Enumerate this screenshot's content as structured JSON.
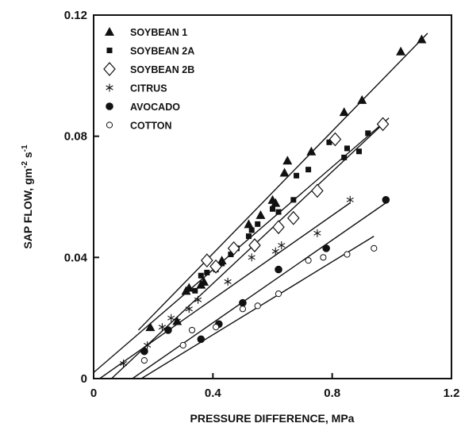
{
  "chart_data": {
    "type": "scatter",
    "xlabel": "PRESSURE DIFFERENCE, MPa",
    "ylabel": "SAP FLOW, gm",
    "ylabel_sup1": "-2",
    "ylabel_mid": " s",
    "ylabel_sup2": "-1",
    "xlim": [
      0,
      1.2
    ],
    "ylim": [
      0,
      0.12
    ],
    "x_ticks": [
      {
        "value": 0,
        "label": "0"
      },
      {
        "value": 0.4,
        "label": "0.4"
      },
      {
        "value": 0.8,
        "label": "0.8"
      },
      {
        "value": 1.2,
        "label": "1.2"
      }
    ],
    "y_ticks": [
      {
        "value": 0,
        "label": "0"
      },
      {
        "value": 0.04,
        "label": "0.04"
      },
      {
        "value": 0.08,
        "label": "0.08"
      },
      {
        "value": 0.12,
        "label": "0.12"
      }
    ],
    "grid": false,
    "legend_position": "top-left",
    "series": [
      {
        "name": "SOYBEAN 1",
        "marker": "triangle",
        "points": [
          [
            0.19,
            0.017
          ],
          [
            0.28,
            0.019
          ],
          [
            0.31,
            0.029
          ],
          [
            0.32,
            0.03
          ],
          [
            0.36,
            0.031
          ],
          [
            0.37,
            0.032
          ],
          [
            0.43,
            0.039
          ],
          [
            0.52,
            0.051
          ],
          [
            0.56,
            0.054
          ],
          [
            0.6,
            0.059
          ],
          [
            0.61,
            0.058
          ],
          [
            0.64,
            0.068
          ],
          [
            0.65,
            0.072
          ],
          [
            0.73,
            0.075
          ],
          [
            0.84,
            0.088
          ],
          [
            0.9,
            0.092
          ],
          [
            1.03,
            0.108
          ],
          [
            1.1,
            0.112
          ]
        ],
        "fit": [
          [
            0.15,
            0.016
          ],
          [
            1.12,
            0.114
          ]
        ]
      },
      {
        "name": "SOYBEAN 2A",
        "marker": "square",
        "points": [
          [
            0.34,
            0.029
          ],
          [
            0.36,
            0.034
          ],
          [
            0.38,
            0.035
          ],
          [
            0.41,
            0.036
          ],
          [
            0.43,
            0.038
          ],
          [
            0.46,
            0.041
          ],
          [
            0.48,
            0.043
          ],
          [
            0.52,
            0.047
          ],
          [
            0.53,
            0.049
          ],
          [
            0.55,
            0.051
          ],
          [
            0.6,
            0.056
          ],
          [
            0.62,
            0.055
          ],
          [
            0.67,
            0.059
          ],
          [
            0.68,
            0.067
          ],
          [
            0.72,
            0.069
          ],
          [
            0.79,
            0.078
          ],
          [
            0.84,
            0.073
          ],
          [
            0.85,
            0.076
          ],
          [
            0.89,
            0.075
          ],
          [
            0.92,
            0.081
          ]
        ],
        "fit": [
          [
            0,
            0.002
          ],
          [
            0.99,
            0.086
          ]
        ]
      },
      {
        "name": "SOYBEAN 2B",
        "marker": "diamond",
        "points": [
          [
            0.38,
            0.039
          ],
          [
            0.41,
            0.037
          ],
          [
            0.47,
            0.043
          ],
          [
            0.54,
            0.044
          ],
          [
            0.62,
            0.05
          ],
          [
            0.67,
            0.053
          ],
          [
            0.75,
            0.062
          ],
          [
            0.81,
            0.079
          ],
          [
            0.97,
            0.084
          ]
        ],
        "fit": [
          [
            0.06,
            0
          ],
          [
            0.97,
            0.084
          ]
        ]
      },
      {
        "name": "CITRUS",
        "marker": "asterisk",
        "points": [
          [
            0.1,
            0.005
          ],
          [
            0.18,
            0.011
          ],
          [
            0.23,
            0.017
          ],
          [
            0.26,
            0.02
          ],
          [
            0.28,
            0.019
          ],
          [
            0.32,
            0.023
          ],
          [
            0.35,
            0.026
          ],
          [
            0.45,
            0.032
          ],
          [
            0.53,
            0.04
          ],
          [
            0.61,
            0.042
          ],
          [
            0.63,
            0.044
          ],
          [
            0.75,
            0.048
          ],
          [
            0.86,
            0.059
          ]
        ],
        "fit": [
          [
            0.02,
            0
          ],
          [
            0.86,
            0.058
          ]
        ]
      },
      {
        "name": "AVOCADO",
        "marker": "filled-circle",
        "points": [
          [
            0.17,
            0.009
          ],
          [
            0.25,
            0.016
          ],
          [
            0.36,
            0.013
          ],
          [
            0.42,
            0.018
          ],
          [
            0.5,
            0.025
          ],
          [
            0.62,
            0.036
          ],
          [
            0.78,
            0.043
          ],
          [
            0.98,
            0.059
          ]
        ],
        "fit": [
          [
            0.13,
            0
          ],
          [
            0.98,
            0.058
          ]
        ]
      },
      {
        "name": "COTTON",
        "marker": "open-circle",
        "points": [
          [
            0.17,
            0.006
          ],
          [
            0.3,
            0.011
          ],
          [
            0.33,
            0.016
          ],
          [
            0.41,
            0.017
          ],
          [
            0.5,
            0.023
          ],
          [
            0.55,
            0.024
          ],
          [
            0.62,
            0.028
          ],
          [
            0.72,
            0.039
          ],
          [
            0.77,
            0.04
          ],
          [
            0.85,
            0.041
          ],
          [
            0.94,
            0.043
          ]
        ],
        "fit": [
          [
            0.16,
            0
          ],
          [
            0.94,
            0.047
          ]
        ]
      }
    ]
  }
}
